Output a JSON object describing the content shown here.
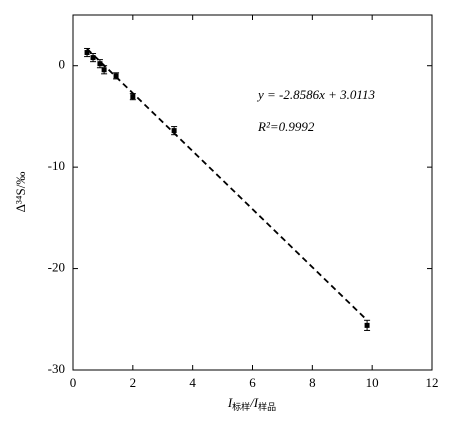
{
  "chart_data": {
    "type": "scatter",
    "x_label": [
      "I",
      "标样",
      "/I",
      "样品"
    ],
    "y_label": "Δ³⁴S/‰",
    "x": [
      0.47,
      0.67,
      0.9,
      1.04,
      1.44,
      2.0,
      3.38,
      9.83
    ],
    "values": [
      1.3,
      0.8,
      0.2,
      -0.4,
      -1.0,
      -3.05,
      -6.4,
      -25.6
    ],
    "errors": [
      0.4,
      0.4,
      0.4,
      0.4,
      0.3,
      0.3,
      0.4,
      0.5
    ],
    "color": "#000000",
    "fit": {
      "slope": -2.8586,
      "intercept": 3.0113
    },
    "annotations": [
      "y = -2.8586x + 3.0113",
      "R²=0.9992"
    ],
    "xlim": [
      0,
      12
    ],
    "xticks": [
      0,
      2,
      4,
      6,
      8,
      10,
      12
    ],
    "ylim": [
      -30,
      5
    ],
    "yticks": [
      -30,
      -20,
      -10,
      0
    ]
  }
}
